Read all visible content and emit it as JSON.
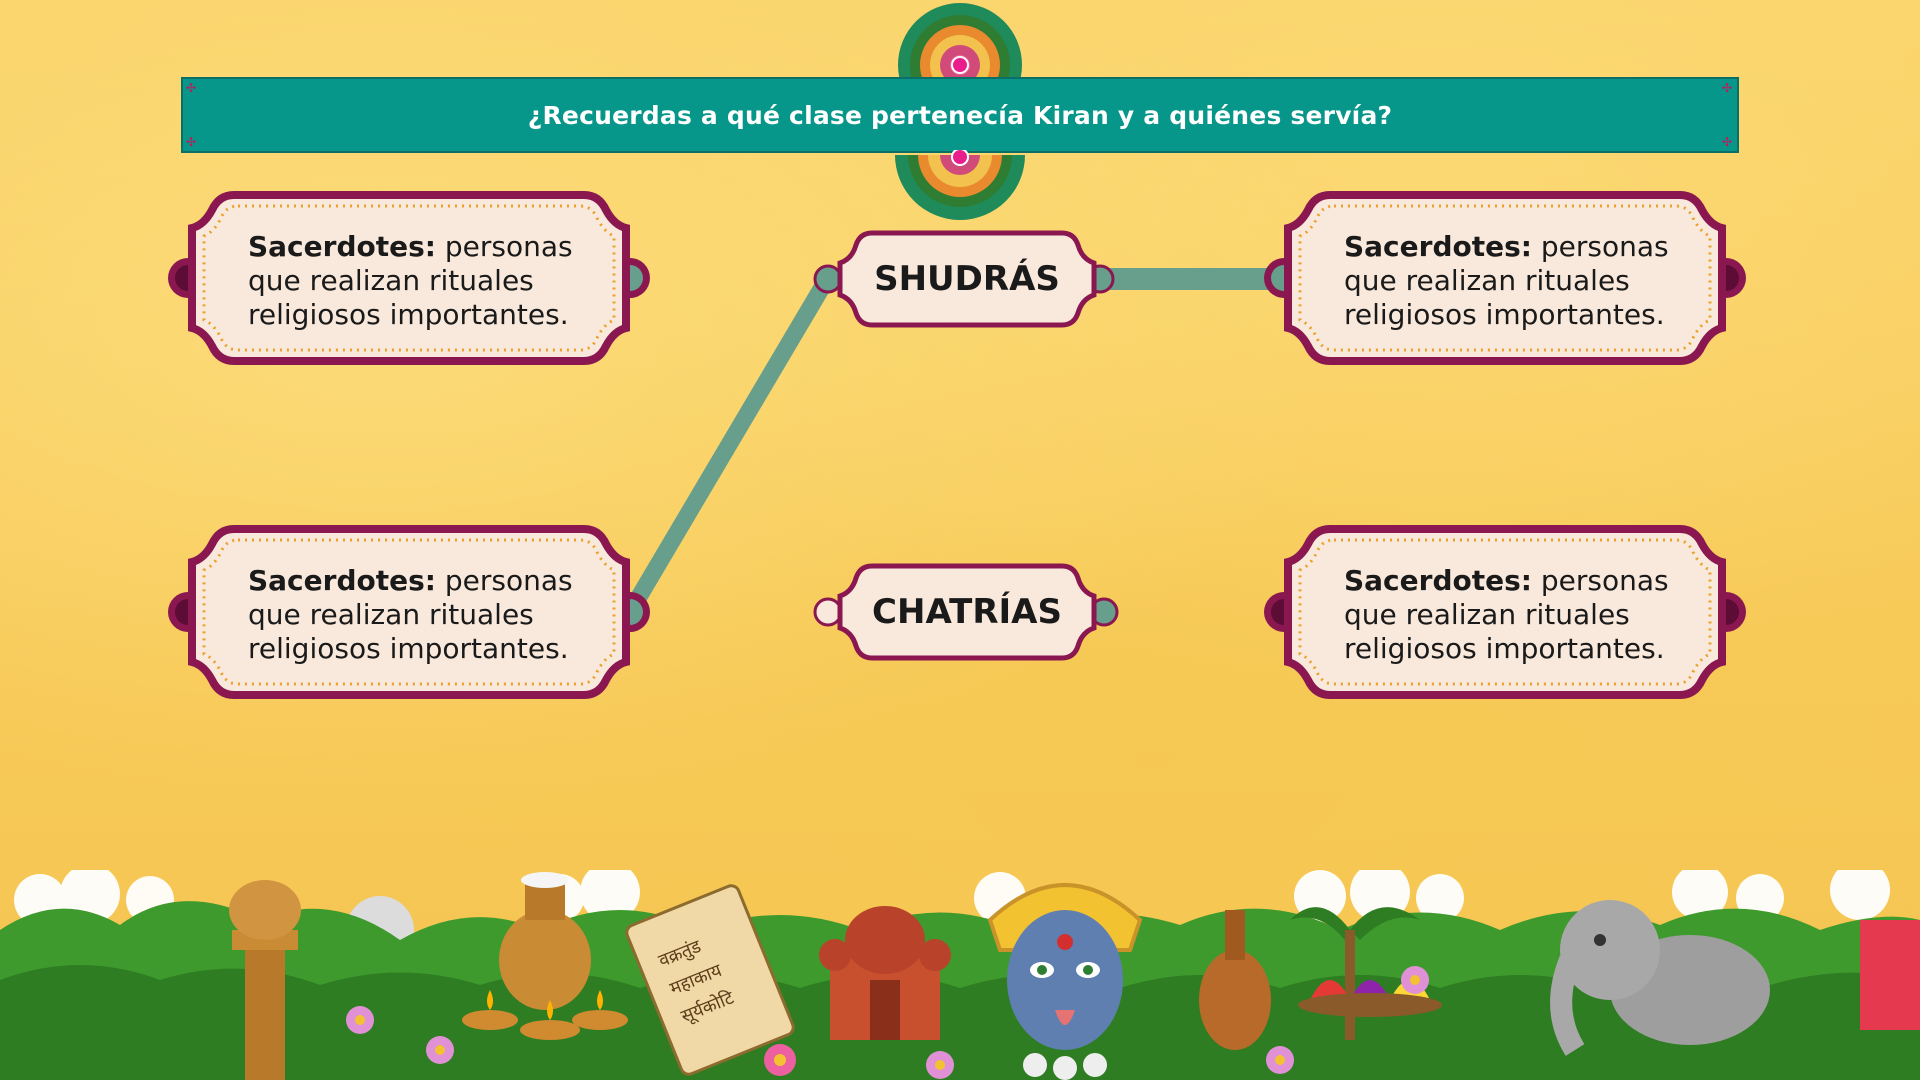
{
  "question": "¿Recuerdas a qué clase pertenecía Kiran y a quiénes servía?",
  "cards": [
    {
      "term": "Sacerdotes:",
      "definition": " personas que realizan rituales religiosos importantes."
    },
    {
      "term": "Sacerdotes:",
      "definition": " personas que realizan rituales religiosos importantes."
    },
    {
      "term": "Sacerdotes:",
      "definition": " personas que realizan rituales religiosos importantes."
    },
    {
      "term": "Sacerdotes:",
      "definition": " personas que realizan rituales religiosos importantes."
    }
  ],
  "classes": [
    "SHUDRÁS",
    "CHATRÍAS"
  ],
  "scroll_text": [
    "वक्रतुंड",
    "महाकाय",
    "सूर्यकोटि"
  ],
  "colors": {
    "banner": "#07968a",
    "card_border": "#8a1750",
    "card_fill": "#f9e9dc",
    "connector": "#679e8c",
    "background": "#f8cd5c"
  }
}
